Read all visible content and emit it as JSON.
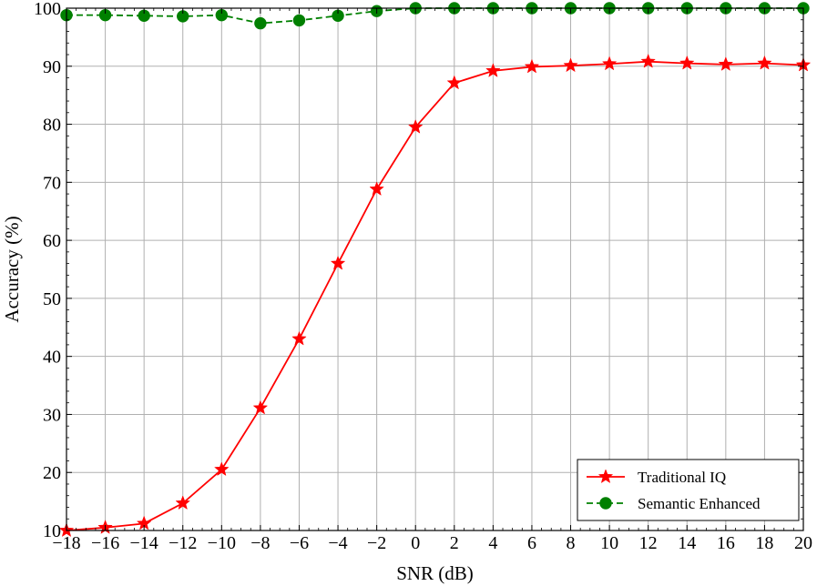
{
  "chart_data": {
    "type": "line",
    "title": "",
    "xlabel": "SNR (dB)",
    "ylabel": "Accuracy (%)",
    "xlim": [
      -18,
      20
    ],
    "ylim": [
      10,
      100
    ],
    "x_ticks": [
      -18,
      -16,
      -14,
      -12,
      -10,
      -8,
      -6,
      -4,
      -2,
      0,
      2,
      4,
      6,
      8,
      10,
      12,
      14,
      16,
      18,
      20
    ],
    "x_tick_labels": [
      "−18",
      "−16",
      "−14",
      "−12",
      "−10",
      "−8",
      "−6",
      "−4",
      "−2",
      "0",
      "2",
      "4",
      "6",
      "8",
      "10",
      "12",
      "14",
      "16",
      "18",
      "20"
    ],
    "y_ticks": [
      10,
      20,
      30,
      40,
      50,
      60,
      70,
      80,
      90,
      100
    ],
    "y_tick_labels": [
      "10",
      "20",
      "30",
      "40",
      "50",
      "60",
      "70",
      "80",
      "90",
      "100"
    ],
    "grid": true,
    "legend_position": "bottom-right",
    "x": [
      -18,
      -16,
      -14,
      -12,
      -10,
      -8,
      -6,
      -4,
      -2,
      0,
      2,
      4,
      6,
      8,
      10,
      12,
      14,
      16,
      18,
      20
    ],
    "series": [
      {
        "name": "Traditional IQ",
        "color": "#ff0000",
        "line_style": "solid",
        "marker": "star",
        "values": [
          10.0,
          10.5,
          11.2,
          14.7,
          20.5,
          31.1,
          43.0,
          56.0,
          68.8,
          79.5,
          87.1,
          89.2,
          89.9,
          90.1,
          90.4,
          90.8,
          90.5,
          90.3,
          90.5,
          90.2
        ]
      },
      {
        "name": "Semantic Enhanced",
        "color": "#008000",
        "line_style": "dashed",
        "marker": "circle",
        "values": [
          98.8,
          98.8,
          98.7,
          98.6,
          98.8,
          97.4,
          97.9,
          98.7,
          99.5,
          100.0,
          100.0,
          100.0,
          100.0,
          100.0,
          100.0,
          100.0,
          100.0,
          100.0,
          100.0,
          100.0
        ]
      }
    ]
  }
}
